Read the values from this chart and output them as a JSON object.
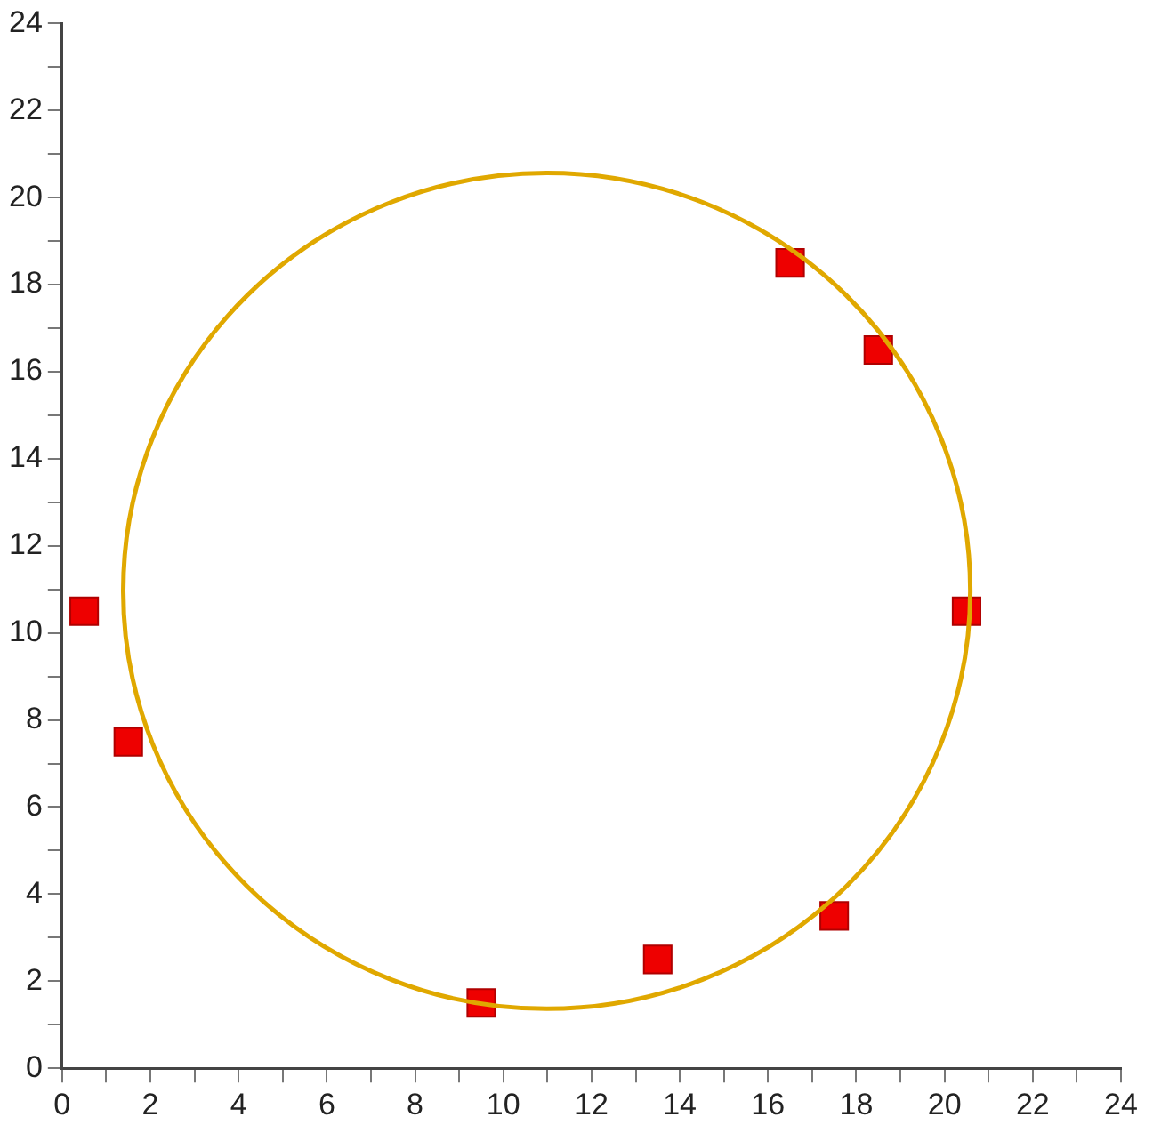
{
  "chart_data": {
    "type": "scatter",
    "marker": "square",
    "grid": false,
    "legend": false,
    "xlim": [
      0,
      24
    ],
    "ylim": [
      0,
      24
    ],
    "xticks": [
      0,
      {
        "value": 1,
        "label": null
      },
      2,
      {
        "value": 3,
        "label": null
      },
      4,
      {
        "value": 5,
        "label": null
      },
      6,
      {
        "value": 7,
        "label": null
      },
      8,
      {
        "value": 9,
        "label": null
      },
      10,
      {
        "value": 11,
        "label": null
      },
      12,
      {
        "value": 13,
        "label": null
      },
      14,
      {
        "value": 15,
        "label": null
      },
      16,
      {
        "value": 17,
        "label": null
      },
      18,
      {
        "value": 19,
        "label": null
      },
      20,
      {
        "value": 21,
        "label": null
      },
      22,
      {
        "value": 23,
        "label": null
      },
      24
    ],
    "yticks": [
      0,
      {
        "value": 1,
        "label": null
      },
      2,
      {
        "value": 3,
        "label": null
      },
      4,
      {
        "value": 5,
        "label": null
      },
      6,
      {
        "value": 7,
        "label": null
      },
      8,
      {
        "value": 9,
        "label": null
      },
      10,
      {
        "value": 11,
        "label": null
      },
      12,
      {
        "value": 13,
        "label": null
      },
      14,
      {
        "value": 15,
        "label": null
      },
      16,
      {
        "value": 17,
        "label": null
      },
      18,
      {
        "value": 19,
        "label": null
      },
      20,
      {
        "value": 21,
        "label": null
      },
      22,
      {
        "value": 23,
        "label": null
      },
      24
    ],
    "series": [
      {
        "type": "scatter",
        "color": "#ee0000",
        "x": [
          0.5,
          1.5,
          9.5,
          13.5,
          17.5,
          20.5,
          18.5,
          16.5
        ],
        "values": [
          10.5,
          7.5,
          1.5,
          2.5,
          3.5,
          10.5,
          16.5,
          18.5
        ]
      }
    ]
  }
}
